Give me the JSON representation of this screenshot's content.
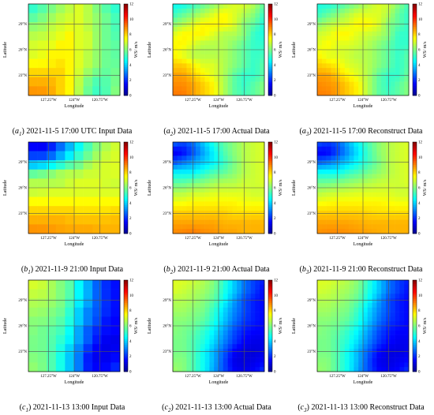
{
  "chart_data": {
    "type": "heatmap",
    "value_range": [
      0,
      12
    ],
    "colorbar_ticks": [
      "12",
      "10",
      "8",
      "6",
      "4",
      "2",
      "0"
    ],
    "colorbar_label": "WS/ m/s",
    "colormap": [
      "#00008f",
      "#0000ff",
      "#0080ff",
      "#00ffff",
      "#80ff80",
      "#ffff00",
      "#ff8000",
      "#ff0000",
      "#800000"
    ],
    "xlabel": "Longitude",
    "ylabel": "Latitude",
    "xticks": [
      "127.25°W",
      "124°W",
      "120.75°W"
    ],
    "yticks": [
      "29°N",
      "26°N",
      "23°N"
    ],
    "grid": true,
    "panels": [
      {
        "label": "a",
        "index": "1",
        "title": "2021-11-5 17:00 UTC Input Data",
        "grid_size": 10,
        "values": [
          [
            4.8,
            5.1,
            5.6,
            6.1,
            6.6,
            7.1,
            6.6,
            5.6,
            5.1,
            4.6
          ],
          [
            5.1,
            5.6,
            6.1,
            6.6,
            6.9,
            7.1,
            6.6,
            6.1,
            5.6,
            5.1
          ],
          [
            6.1,
            6.1,
            6.6,
            6.9,
            7.1,
            7.1,
            6.6,
            6.1,
            5.6,
            5.1
          ],
          [
            6.6,
            6.6,
            6.9,
            7.1,
            7.6,
            7.1,
            6.9,
            6.1,
            5.6,
            5.3
          ],
          [
            6.9,
            7.1,
            7.1,
            7.6,
            7.6,
            7.1,
            6.9,
            6.1,
            5.6,
            5.6
          ],
          [
            7.1,
            7.1,
            7.6,
            7.6,
            7.6,
            7.1,
            6.6,
            6.1,
            5.6,
            5.6
          ],
          [
            7.6,
            7.6,
            7.6,
            7.9,
            7.6,
            7.1,
            6.6,
            6.1,
            5.6,
            5.8
          ],
          [
            8.1,
            8.1,
            8.1,
            8.1,
            7.6,
            6.9,
            6.1,
            5.6,
            5.6,
            6.1
          ],
          [
            8.6,
            8.6,
            8.6,
            8.1,
            7.6,
            6.6,
            5.6,
            5.1,
            5.6,
            6.1
          ],
          [
            8.8,
            8.9,
            8.6,
            8.1,
            7.6,
            6.6,
            5.6,
            5.1,
            5.6,
            6.6
          ]
        ]
      },
      {
        "label": "a",
        "index": "2",
        "title": "2021-11-5 17:00 Actual Data",
        "grid_size": 20,
        "values": [
          [
            4.6,
            4.6,
            5.1,
            5.6,
            6.1,
            6.6,
            7.1,
            7.1,
            6.6,
            5.6
          ],
          [
            5.1,
            5.6,
            6.1,
            6.6,
            7.1,
            7.6,
            7.1,
            6.6,
            6.1,
            5.1
          ],
          [
            6.1,
            6.6,
            7.1,
            7.6,
            7.6,
            7.6,
            7.1,
            6.1,
            5.6,
            4.8
          ],
          [
            7.1,
            7.6,
            7.6,
            7.6,
            7.1,
            6.6,
            6.6,
            6.1,
            5.1,
            4.8
          ],
          [
            7.6,
            7.6,
            7.1,
            6.6,
            6.6,
            6.6,
            6.1,
            5.6,
            5.1,
            5.1
          ],
          [
            7.6,
            7.1,
            6.6,
            6.6,
            6.6,
            6.6,
            6.1,
            5.6,
            5.1,
            5.3
          ],
          [
            8.1,
            8.1,
            7.6,
            7.1,
            7.1,
            6.6,
            6.1,
            5.6,
            5.1,
            5.6
          ],
          [
            8.6,
            8.6,
            8.1,
            7.6,
            7.1,
            6.6,
            5.6,
            5.1,
            5.1,
            5.6
          ],
          [
            8.9,
            8.9,
            8.6,
            8.1,
            7.6,
            6.6,
            5.6,
            5.1,
            5.6,
            6.1
          ],
          [
            9.1,
            9.1,
            8.6,
            8.1,
            7.6,
            6.6,
            5.6,
            5.3,
            5.6,
            6.1
          ]
        ]
      },
      {
        "label": "a",
        "index": "3",
        "title": "2021-11-5 17:00 Reconstruct Data",
        "grid_size": 20,
        "values": [
          [
            4.8,
            4.8,
            5.1,
            5.6,
            6.1,
            6.6,
            7.1,
            6.9,
            6.1,
            5.3
          ],
          [
            5.1,
            5.6,
            6.1,
            6.6,
            7.1,
            7.1,
            7.1,
            6.6,
            5.6,
            5.1
          ],
          [
            6.1,
            6.6,
            6.9,
            7.1,
            7.6,
            7.6,
            7.1,
            6.1,
            5.6,
            5.1
          ],
          [
            6.9,
            7.1,
            7.6,
            7.6,
            7.1,
            6.9,
            6.6,
            6.1,
            5.1,
            5.1
          ],
          [
            7.1,
            7.6,
            7.1,
            7.1,
            6.9,
            6.6,
            6.1,
            5.6,
            5.1,
            5.1
          ],
          [
            7.6,
            7.1,
            7.1,
            6.9,
            6.6,
            6.6,
            6.1,
            5.6,
            5.1,
            5.6
          ],
          [
            8.1,
            7.9,
            7.6,
            7.1,
            6.9,
            6.6,
            6.1,
            5.6,
            5.1,
            5.6
          ],
          [
            8.6,
            8.6,
            8.1,
            7.6,
            7.1,
            6.6,
            5.6,
            5.1,
            5.1,
            5.8
          ],
          [
            8.9,
            8.8,
            8.6,
            8.1,
            7.6,
            6.6,
            5.6,
            5.1,
            5.6,
            6.1
          ],
          [
            9.0,
            9.0,
            8.6,
            8.1,
            7.6,
            6.6,
            5.6,
            5.3,
            5.6,
            6.1
          ]
        ]
      },
      {
        "label": "b",
        "index": "1",
        "title": "2021-11-9 21:00 Input Data",
        "grid_size": 10,
        "values": [
          [
            1.5,
            1.2,
            1.5,
            2.4,
            3.4,
            4.4,
            5.4,
            6.1,
            6.6,
            7.1
          ],
          [
            1.8,
            1.5,
            1.8,
            2.9,
            3.9,
            4.9,
            5.6,
            6.4,
            6.9,
            7.1
          ],
          [
            3.4,
            3.4,
            3.9,
            4.4,
            5.1,
            5.6,
            6.4,
            6.9,
            7.1,
            7.1
          ],
          [
            5.4,
            5.6,
            5.9,
            6.4,
            6.6,
            6.6,
            6.9,
            6.9,
            7.1,
            7.1
          ],
          [
            6.6,
            6.6,
            6.6,
            6.6,
            6.9,
            7.1,
            7.1,
            7.1,
            6.9,
            6.9
          ],
          [
            6.9,
            6.9,
            7.1,
            7.1,
            7.1,
            7.1,
            7.1,
            7.1,
            7.1,
            7.1
          ],
          [
            7.6,
            7.6,
            7.6,
            7.6,
            7.6,
            7.6,
            7.6,
            7.6,
            7.6,
            7.6
          ],
          [
            8.1,
            8.1,
            8.1,
            8.1,
            8.1,
            7.9,
            7.9,
            7.9,
            7.9,
            8.1
          ],
          [
            8.6,
            8.6,
            8.6,
            8.6,
            8.4,
            8.4,
            8.4,
            8.4,
            8.4,
            8.4
          ],
          [
            8.9,
            8.9,
            8.8,
            8.6,
            8.6,
            8.6,
            8.6,
            8.4,
            8.4,
            8.4
          ]
        ]
      },
      {
        "label": "b",
        "index": "2",
        "title": "2021-11-9 21:00 Actual Data",
        "grid_size": 20,
        "values": [
          [
            2.9,
            2.4,
            2.9,
            3.9,
            4.9,
            5.6,
            6.1,
            6.6,
            6.9,
            7.1
          ],
          [
            1.2,
            1.5,
            2.4,
            3.4,
            4.4,
            5.4,
            6.1,
            6.6,
            6.9,
            7.1
          ],
          [
            2.4,
            2.9,
            3.4,
            3.9,
            4.4,
            5.1,
            5.9,
            6.6,
            6.9,
            7.1
          ],
          [
            4.4,
            4.4,
            4.4,
            4.9,
            5.4,
            5.6,
            6.1,
            6.6,
            6.9,
            7.1
          ],
          [
            5.6,
            5.6,
            5.9,
            6.1,
            6.4,
            6.6,
            6.6,
            6.9,
            6.9,
            7.1
          ],
          [
            6.6,
            6.6,
            6.9,
            6.9,
            7.1,
            7.1,
            7.1,
            7.1,
            6.9,
            6.9
          ],
          [
            7.4,
            7.4,
            7.6,
            7.6,
            7.6,
            7.6,
            7.6,
            7.4,
            7.4,
            7.4
          ],
          [
            8.1,
            8.1,
            8.1,
            8.1,
            8.1,
            8.1,
            7.9,
            7.9,
            7.9,
            7.9
          ],
          [
            8.6,
            8.6,
            8.6,
            8.6,
            8.6,
            8.4,
            8.4,
            8.4,
            8.4,
            8.4
          ],
          [
            8.9,
            9.0,
            9.1,
            8.9,
            8.8,
            8.6,
            8.6,
            8.4,
            8.4,
            8.4
          ]
        ]
      },
      {
        "label": "b",
        "index": "3",
        "title": "2021-11-9 21:00 Reconstruct Data",
        "grid_size": 20,
        "values": [
          [
            2.6,
            2.2,
            2.6,
            3.6,
            4.6,
            5.4,
            6.1,
            6.6,
            6.9,
            7.1
          ],
          [
            1.4,
            1.4,
            2.2,
            3.2,
            4.2,
            5.2,
            6.1,
            6.6,
            6.9,
            7.1
          ],
          [
            2.6,
            2.9,
            3.4,
            3.9,
            4.6,
            5.2,
            5.9,
            6.6,
            6.9,
            7.1
          ],
          [
            4.6,
            4.6,
            4.6,
            5.1,
            5.4,
            5.8,
            6.2,
            6.6,
            6.9,
            7.1
          ],
          [
            5.8,
            5.8,
            6.0,
            6.2,
            6.4,
            6.6,
            6.8,
            6.9,
            6.9,
            7.1
          ],
          [
            6.6,
            6.8,
            6.9,
            7.0,
            7.1,
            7.1,
            7.1,
            7.1,
            6.9,
            6.9
          ],
          [
            7.4,
            7.5,
            7.6,
            7.6,
            7.6,
            7.6,
            7.6,
            7.5,
            7.4,
            7.4
          ],
          [
            8.1,
            8.1,
            8.1,
            8.1,
            8.1,
            8.0,
            7.9,
            7.9,
            7.9,
            7.9
          ],
          [
            8.6,
            8.6,
            8.6,
            8.6,
            8.5,
            8.4,
            8.4,
            8.4,
            8.4,
            8.4
          ],
          [
            8.8,
            8.9,
            8.9,
            8.8,
            8.7,
            8.6,
            8.5,
            8.4,
            8.4,
            8.4
          ]
        ]
      },
      {
        "label": "c",
        "index": "1",
        "title": "2021-11-13 13:00 Input Data",
        "grid_size": 10,
        "values": [
          [
            7.1,
            7.1,
            6.6,
            6.1,
            5.6,
            4.4,
            3.4,
            2.4,
            1.8,
            1.5
          ],
          [
            6.9,
            6.9,
            6.6,
            6.1,
            5.6,
            4.4,
            3.4,
            2.4,
            1.8,
            1.5
          ],
          [
            6.6,
            6.6,
            6.4,
            6.1,
            5.4,
            4.4,
            3.4,
            2.4,
            1.8,
            1.5
          ],
          [
            6.4,
            6.4,
            6.1,
            5.9,
            5.1,
            3.9,
            2.9,
            2.4,
            1.8,
            1.5
          ],
          [
            6.1,
            6.1,
            5.9,
            5.6,
            4.9,
            3.9,
            2.9,
            2.2,
            1.5,
            1.5
          ],
          [
            6.1,
            5.9,
            5.6,
            5.4,
            4.6,
            3.4,
            2.4,
            1.8,
            1.5,
            1.5
          ],
          [
            5.9,
            5.9,
            5.6,
            5.1,
            4.4,
            3.4,
            2.4,
            1.5,
            1.2,
            1.2
          ],
          [
            5.9,
            5.9,
            5.6,
            4.9,
            3.9,
            2.9,
            1.8,
            1.2,
            1.2,
            1.5
          ],
          [
            6.1,
            6.1,
            5.6,
            4.9,
            3.9,
            2.9,
            1.5,
            1.2,
            1.5,
            1.8
          ],
          [
            6.4,
            6.1,
            5.6,
            4.9,
            3.9,
            2.9,
            1.8,
            1.5,
            1.8,
            2.4
          ]
        ]
      },
      {
        "label": "c",
        "index": "2",
        "title": "2021-11-13 13:00 Actual Data",
        "grid_size": 20,
        "values": [
          [
            7.1,
            7.1,
            6.9,
            6.6,
            6.1,
            5.1,
            3.9,
            2.9,
            2.2,
            1.8
          ],
          [
            7.1,
            6.9,
            6.6,
            6.4,
            5.9,
            4.9,
            3.9,
            2.9,
            2.2,
            1.5
          ],
          [
            6.6,
            6.6,
            6.4,
            6.1,
            5.6,
            4.6,
            3.4,
            2.4,
            1.8,
            1.5
          ],
          [
            6.4,
            6.4,
            6.1,
            5.9,
            5.1,
            4.1,
            3.1,
            2.4,
            1.8,
            1.5
          ],
          [
            6.1,
            6.1,
            5.9,
            5.6,
            4.9,
            3.9,
            2.9,
            2.2,
            1.8,
            1.5
          ],
          [
            6.1,
            5.9,
            5.6,
            5.1,
            4.4,
            3.4,
            2.4,
            1.8,
            1.5,
            1.5
          ],
          [
            5.9,
            5.9,
            5.4,
            4.9,
            4.1,
            3.1,
            2.2,
            1.5,
            1.2,
            1.2
          ],
          [
            5.9,
            5.9,
            5.4,
            4.6,
            3.6,
            2.6,
            1.5,
            1.0,
            1.0,
            1.2
          ],
          [
            6.1,
            6.1,
            5.4,
            4.6,
            3.6,
            2.4,
            1.2,
            1.0,
            1.2,
            1.5
          ],
          [
            6.4,
            6.1,
            5.4,
            4.6,
            3.4,
            2.4,
            1.5,
            1.2,
            1.5,
            2.2
          ]
        ]
      },
      {
        "label": "c",
        "index": "3",
        "title": "2021-11-13 13:00 Reconstruct Data",
        "grid_size": 20,
        "values": [
          [
            7.1,
            7.1,
            6.9,
            6.6,
            6.1,
            5.1,
            3.9,
            2.9,
            2.2,
            1.8
          ],
          [
            7.0,
            6.9,
            6.6,
            6.4,
            5.9,
            4.9,
            3.9,
            2.9,
            2.2,
            1.6
          ],
          [
            6.6,
            6.6,
            6.4,
            6.1,
            5.6,
            4.6,
            3.4,
            2.4,
            1.8,
            1.5
          ],
          [
            6.4,
            6.4,
            6.1,
            5.9,
            5.1,
            4.1,
            3.1,
            2.4,
            1.8,
            1.5
          ],
          [
            6.1,
            6.1,
            5.9,
            5.6,
            4.9,
            3.9,
            2.9,
            2.2,
            1.8,
            1.5
          ],
          [
            6.1,
            5.9,
            5.6,
            5.1,
            4.4,
            3.4,
            2.4,
            1.8,
            1.5,
            1.5
          ],
          [
            5.9,
            5.9,
            5.4,
            4.9,
            4.1,
            3.1,
            2.2,
            1.6,
            1.3,
            1.3
          ],
          [
            5.9,
            5.9,
            5.4,
            4.6,
            3.6,
            2.6,
            1.6,
            1.1,
            1.1,
            1.3
          ],
          [
            6.1,
            6.1,
            5.4,
            4.6,
            3.6,
            2.4,
            1.3,
            1.1,
            1.3,
            1.6
          ],
          [
            6.3,
            6.1,
            5.4,
            4.6,
            3.4,
            2.4,
            1.6,
            1.3,
            1.6,
            2.2
          ]
        ]
      }
    ]
  }
}
